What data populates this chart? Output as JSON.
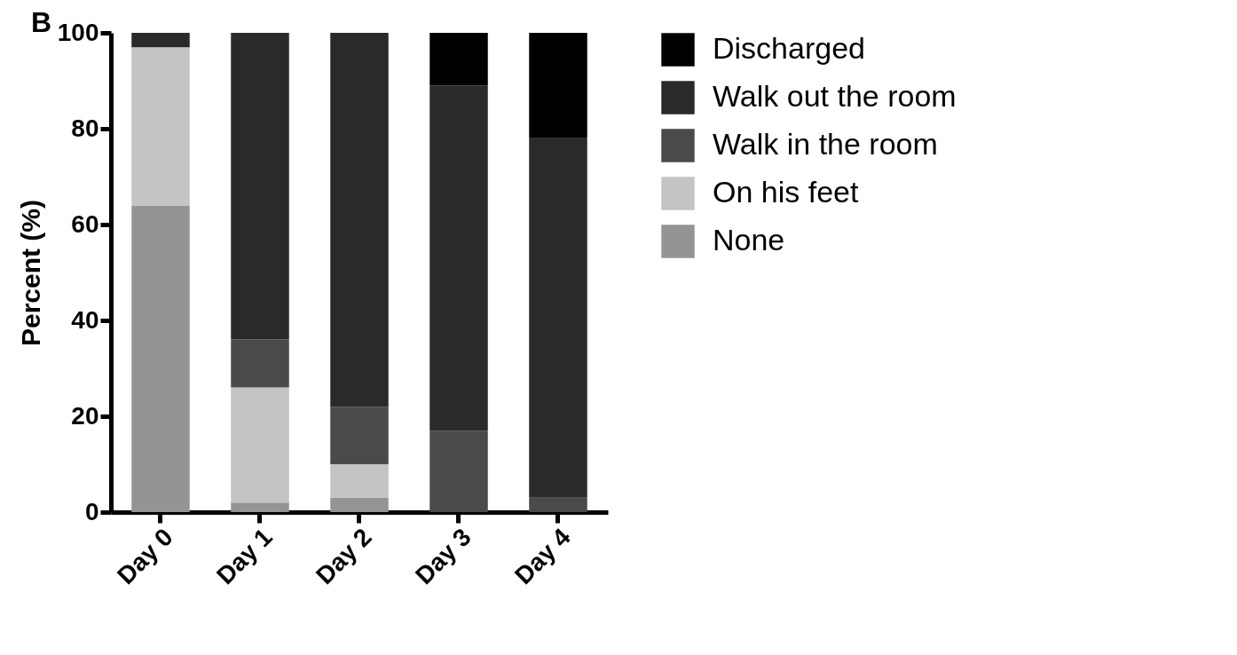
{
  "chart_data": {
    "type": "bar",
    "title": "B",
    "ylabel": "Percent (%)",
    "categories": [
      "Day 0",
      "Day 1",
      "Day 2",
      "Day 3",
      "Day 4"
    ],
    "stacked": true,
    "ylim": [
      0,
      100
    ],
    "yticks": [
      0,
      20,
      40,
      60,
      80,
      100
    ],
    "grid": false,
    "legend": "right",
    "series": [
      {
        "name": "None",
        "color": "#949494",
        "values": [
          64,
          2,
          3,
          0,
          0
        ]
      },
      {
        "name": "On his feet",
        "color": "#c4c4c4",
        "values": [
          33,
          24,
          7,
          0,
          0
        ]
      },
      {
        "name": "Walk in the room",
        "color": "#4a4a4a",
        "values": [
          0,
          10,
          12,
          17,
          3
        ]
      },
      {
        "name": "Walk out the room",
        "color": "#2a2a2a",
        "values": [
          3,
          64,
          78,
          72,
          75
        ]
      },
      {
        "name": "Discharged",
        "color": "#000000",
        "values": [
          0,
          0,
          0,
          11,
          22
        ]
      }
    ]
  }
}
